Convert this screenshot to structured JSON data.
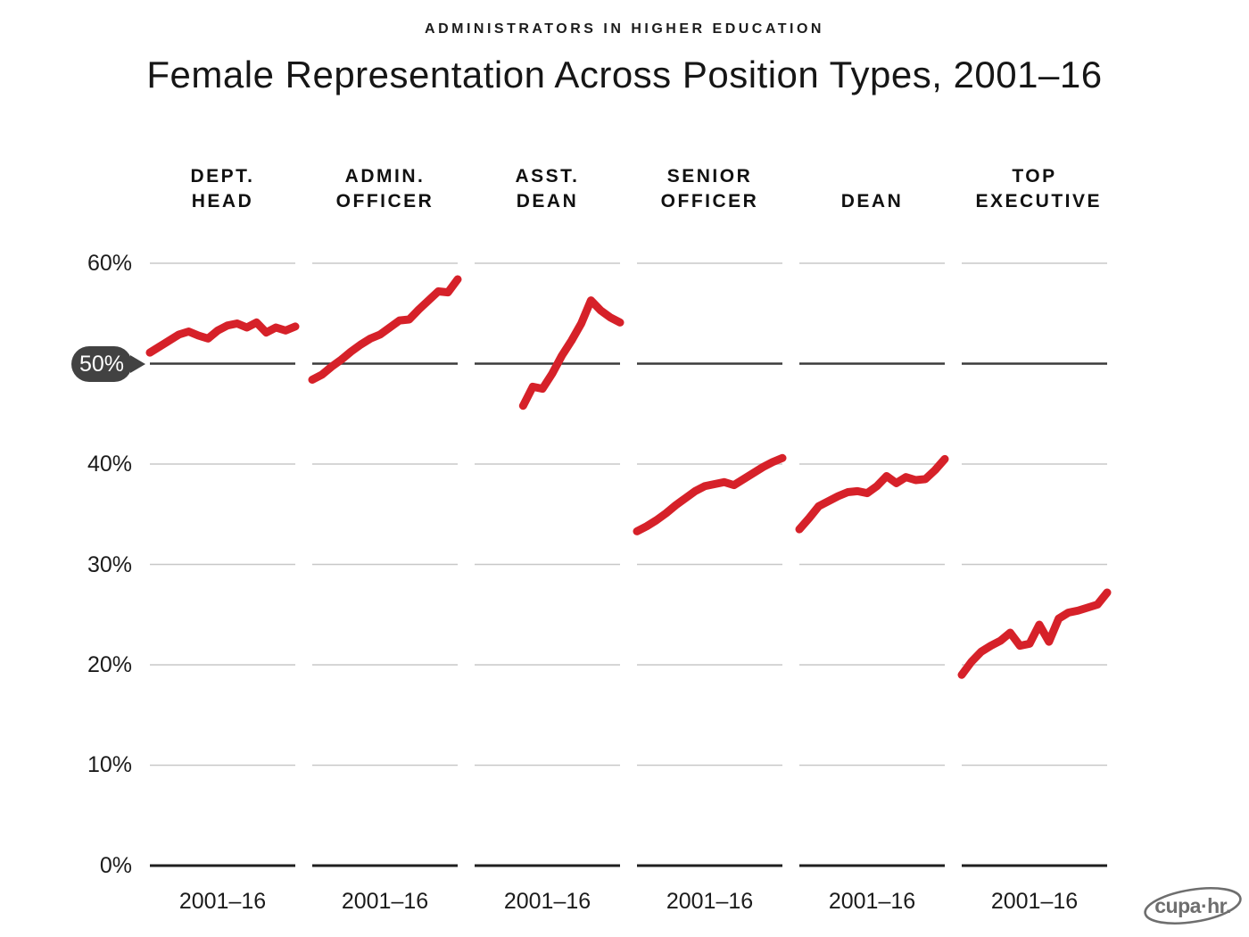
{
  "header": {
    "kicker": "ADMINISTRATORS IN HIGHER EDUCATION",
    "title": "Female Representation Across Position Types, 2001–16"
  },
  "chart_data": {
    "type": "line",
    "title": "Female Representation Across Position Types, 2001–16",
    "subtitle": "ADMINISTRATORS IN HIGHER EDUCATION",
    "layout": "six small-multiple panels, shared y axis, grid on, no legend",
    "x_label": "2001–16",
    "x_range": [
      2001,
      2016
    ],
    "ylim": [
      0,
      60
    ],
    "y_ticks": [
      "60%",
      "50%",
      "40%",
      "30%",
      "20%",
      "10%",
      "0%"
    ],
    "y_tick_values": [
      60,
      50,
      40,
      30,
      20,
      10,
      0
    ],
    "highlight_tick": "50%",
    "highlight_value": 50,
    "line_color": "#d62129",
    "grid_color": "#c8c8c8",
    "dark_line_color": "#3b3b3b",
    "baseline_color": "#1f1f1f",
    "panels": [
      {
        "label": "DEPT. HEAD",
        "start_year": 2001,
        "values": [
          51.1,
          51.7,
          52.3,
          52.9,
          53.2,
          52.8,
          52.5,
          53.3,
          53.8,
          54.0,
          53.6,
          54.1,
          53.1,
          53.6,
          53.3,
          53.7
        ]
      },
      {
        "label": "ADMIN. OFFICER",
        "start_year": 2001,
        "values": [
          48.4,
          48.9,
          49.7,
          50.4,
          51.2,
          51.9,
          52.5,
          52.9,
          53.6,
          54.3,
          54.4,
          55.4,
          56.3,
          57.2,
          57.1,
          58.4
        ]
      },
      {
        "label": "ASST. DEAN",
        "start_year": 2006,
        "values": [
          45.8,
          47.7,
          47.5,
          49.0,
          50.8,
          52.3,
          54.0,
          56.3,
          55.3,
          54.6,
          54.1
        ]
      },
      {
        "label": "SENIOR OFFICER",
        "start_year": 2001,
        "values": [
          33.3,
          33.8,
          34.4,
          35.1,
          35.9,
          36.6,
          37.3,
          37.8,
          38.0,
          38.2,
          37.9,
          38.5,
          39.1,
          39.7,
          40.2,
          40.6
        ]
      },
      {
        "label": "DEAN",
        "start_year": 2001,
        "values": [
          33.5,
          34.6,
          35.8,
          36.3,
          36.8,
          37.2,
          37.3,
          37.1,
          37.8,
          38.8,
          38.1,
          38.7,
          38.4,
          38.5,
          39.4,
          40.5
        ]
      },
      {
        "label": "TOP EXECUTIVE",
        "start_year": 2001,
        "values": [
          19.0,
          20.3,
          21.3,
          21.9,
          22.4,
          23.2,
          21.9,
          22.1,
          24.0,
          22.3,
          24.6,
          25.2,
          25.4,
          25.7,
          26.0,
          27.2
        ]
      }
    ]
  },
  "footer": {
    "logo_text": "cupa·hr."
  }
}
